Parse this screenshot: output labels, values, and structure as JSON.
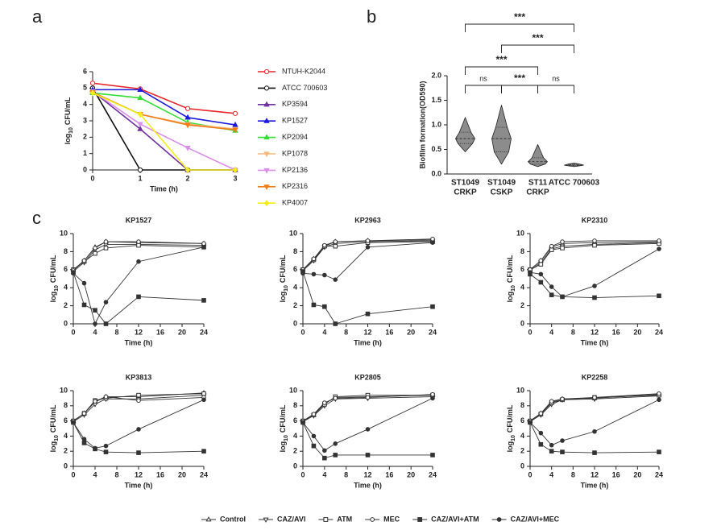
{
  "panel_labels": [
    "a",
    "b",
    "c"
  ],
  "chart_data": [
    {
      "type": "line",
      "xlabel": "Time (h)",
      "ylabel": {
        "main": "log",
        "sub": "10",
        "rest": "CFU/mL"
      },
      "x": [
        0,
        1,
        2,
        3
      ],
      "xlim": [
        0,
        3
      ],
      "xticks": [
        0,
        1,
        2,
        3
      ],
      "ylim": [
        0,
        6
      ],
      "yticks": [
        0,
        1,
        2,
        3,
        4,
        5,
        6
      ],
      "series": [
        {
          "name": "NTUH-K2044",
          "color": "#e8262b",
          "marker": "circle-open",
          "values": [
            5.3,
            4.95,
            3.75,
            3.45
          ]
        },
        {
          "name": "ATCC 700603",
          "color": "#111111",
          "marker": "circle-open",
          "values": [
            5.0,
            0,
            0,
            0
          ]
        },
        {
          "name": "KP3594",
          "color": "#7030a0",
          "marker": "triangle",
          "values": [
            4.8,
            2.5,
            0,
            0
          ]
        },
        {
          "name": "KP1527",
          "color": "#1a1adb",
          "marker": "triangle",
          "values": [
            4.9,
            4.9,
            3.2,
            2.75
          ]
        },
        {
          "name": "KP2094",
          "color": "#33dd33",
          "marker": "triangle",
          "values": [
            4.7,
            4.4,
            2.9,
            2.4
          ]
        },
        {
          "name": "KP1078",
          "color": "#f5b77a",
          "marker": "triangle-down",
          "values": [
            4.7,
            3.4,
            2.8,
            2.5
          ]
        },
        {
          "name": "KP2136",
          "color": "#d98ee8",
          "marker": "triangle-down",
          "values": [
            4.8,
            2.8,
            1.35,
            0
          ]
        },
        {
          "name": "KP2316",
          "color": "#f07d1a",
          "marker": "triangle-down",
          "values": [
            4.75,
            3.4,
            2.75,
            2.45
          ]
        },
        {
          "name": "KP4007",
          "color": "#f2ee1a",
          "marker": "diamond",
          "values": [
            4.7,
            3.4,
            0,
            0
          ]
        }
      ]
    },
    {
      "type": "violin",
      "ylabel": "Biofilm formation(OD590)",
      "color": "#8c8c8c",
      "categories": [
        [
          "ST1049",
          "CRKP"
        ],
        [
          "ST1049",
          "CSKP"
        ],
        [
          "ST11",
          "CRKP"
        ],
        [
          "ATCC 700603"
        ]
      ],
      "stats": [
        {
          "min": 0.45,
          "q1": 0.62,
          "median": 0.72,
          "q3": 0.85,
          "max": 1.15
        },
        {
          "min": 0.2,
          "q1": 0.45,
          "median": 0.72,
          "q3": 0.95,
          "max": 1.4
        },
        {
          "min": 0.15,
          "q1": 0.2,
          "median": 0.25,
          "q3": 0.33,
          "max": 0.6
        },
        {
          "min": 0.15,
          "q1": 0.17,
          "median": 0.18,
          "q3": 0.2,
          "max": 0.22
        }
      ],
      "ylim": [
        0,
        2
      ],
      "yticks": [
        {
          "value": 0,
          "label": "0.0"
        },
        {
          "value": 0.5,
          "label": "0.5"
        },
        {
          "value": 1,
          "label": "1.0"
        },
        {
          "value": 1.5,
          "label": "1.5"
        },
        {
          "value": 2,
          "label": "2.0"
        }
      ],
      "comparisons": [
        {
          "from": 0,
          "to": 1,
          "label": "ns"
        },
        {
          "from": 1,
          "to": 2,
          "label": "***"
        },
        {
          "from": 2,
          "to": 3,
          "label": "ns"
        },
        {
          "from": 0,
          "to": 2,
          "label": "***"
        },
        {
          "from": 1,
          "to": 3,
          "label": "***"
        },
        {
          "from": 0,
          "to": 3,
          "label": "***"
        }
      ]
    },
    {
      "type": "line",
      "title": "KP1527",
      "xlabel": "Time (h)",
      "ylabel": {
        "main": "log",
        "sub": "10",
        "rest": "CFU/mL"
      },
      "x": [
        0,
        2,
        4,
        6,
        12,
        24
      ],
      "xlim": [
        0,
        24
      ],
      "xticks": [
        0,
        4,
        8,
        12,
        16,
        20,
        24
      ],
      "ylim": [
        0,
        10
      ],
      "yticks": [
        0,
        2,
        4,
        6,
        8,
        10
      ],
      "series": [
        {
          "values": [
            6.0,
            7.0,
            8.5,
            9.1,
            9.0,
            8.9
          ]
        },
        {
          "values": [
            5.8,
            6.8,
            8.2,
            8.8,
            8.8,
            8.7
          ]
        },
        {
          "values": [
            6.0,
            6.9,
            7.8,
            8.4,
            8.7,
            8.5
          ]
        },
        {
          "values": [
            5.9,
            7.0,
            8.4,
            9.1,
            9.1,
            8.9
          ]
        },
        {
          "values": [
            5.7,
            2.1,
            1.5,
            0,
            3.0,
            2.6
          ]
        },
        {
          "values": [
            5.6,
            4.5,
            0,
            2.4,
            6.9,
            8.5
          ]
        }
      ]
    },
    {
      "type": "line",
      "title": "KP2963",
      "xlabel": "Time (h)",
      "ylabel": {
        "main": "log",
        "sub": "10",
        "rest": "CFU/mL"
      },
      "x": [
        0,
        2,
        4,
        6,
        12,
        24
      ],
      "xlim": [
        0,
        24
      ],
      "xticks": [
        0,
        4,
        8,
        12,
        16,
        20,
        24
      ],
      "ylim": [
        0,
        10
      ],
      "yticks": [
        0,
        2,
        4,
        6,
        8,
        10
      ],
      "series": [
        {
          "values": [
            6.0,
            7.2,
            8.6,
            9.1,
            9.2,
            9.3
          ]
        },
        {
          "values": [
            5.9,
            7.0,
            8.5,
            8.9,
            9.1,
            9.2
          ]
        },
        {
          "values": [
            6.0,
            7.1,
            8.6,
            8.6,
            9.0,
            9.1
          ]
        },
        {
          "values": [
            6.0,
            7.2,
            8.7,
            9.1,
            9.2,
            9.4
          ]
        },
        {
          "values": [
            5.8,
            2.1,
            1.9,
            0,
            1.1,
            1.9
          ]
        },
        {
          "values": [
            5.6,
            5.5,
            5.4,
            4.9,
            8.5,
            9.0
          ]
        }
      ]
    },
    {
      "type": "line",
      "title": "KP2310",
      "xlabel": "Time (h)",
      "ylabel": {
        "main": "log",
        "sub": "10",
        "rest": "CFU/mL"
      },
      "x": [
        0,
        2,
        4,
        6,
        12,
        24
      ],
      "xlim": [
        0,
        24
      ],
      "xticks": [
        0,
        4,
        8,
        12,
        16,
        20,
        24
      ],
      "ylim": [
        0,
        10
      ],
      "yticks": [
        0,
        2,
        4,
        6,
        8,
        10
      ],
      "series": [
        {
          "values": [
            6.0,
            7.0,
            8.5,
            8.9,
            9.0,
            9.1
          ]
        },
        {
          "values": [
            5.9,
            6.8,
            8.3,
            8.6,
            8.8,
            9.0
          ]
        },
        {
          "values": [
            6.0,
            6.6,
            8.2,
            8.4,
            8.7,
            8.9
          ]
        },
        {
          "values": [
            6.0,
            7.0,
            8.6,
            9.1,
            9.2,
            9.2
          ]
        },
        {
          "values": [
            5.5,
            4.6,
            3.2,
            3.0,
            2.9,
            3.1
          ]
        },
        {
          "values": [
            5.7,
            5.5,
            4.1,
            3.0,
            4.2,
            8.3
          ]
        }
      ]
    },
    {
      "type": "line",
      "title": "KP3813",
      "xlabel": "Time (h)",
      "ylabel": {
        "main": "log",
        "sub": "10",
        "rest": "CFU/mL"
      },
      "x": [
        0,
        2,
        4,
        6,
        12,
        24
      ],
      "xlim": [
        0,
        24
      ],
      "xticks": [
        0,
        4,
        8,
        12,
        16,
        20,
        24
      ],
      "ylim": [
        0,
        10
      ],
      "yticks": [
        0,
        2,
        4,
        6,
        8,
        10
      ],
      "series": [
        {
          "values": [
            6.0,
            7.0,
            8.5,
            9.2,
            9.2,
            9.7
          ]
        },
        {
          "values": [
            5.9,
            6.8,
            8.2,
            8.9,
            8.9,
            9.4
          ]
        },
        {
          "values": [
            6.0,
            7.0,
            8.7,
            9.0,
            9.4,
            9.6
          ]
        },
        {
          "values": [
            6.0,
            7.0,
            8.6,
            9.2,
            8.7,
            9.1
          ]
        },
        {
          "values": [
            5.8,
            3.1,
            2.3,
            1.9,
            1.8,
            2.0
          ]
        },
        {
          "values": [
            5.8,
            3.6,
            2.4,
            2.7,
            4.9,
            8.8
          ]
        }
      ]
    },
    {
      "type": "line",
      "title": "KP2805",
      "xlabel": "Time (h)",
      "ylabel": {
        "main": "log",
        "sub": "10",
        "rest": "CFU/mL"
      },
      "x": [
        0,
        2,
        4,
        6,
        12,
        24
      ],
      "xlim": [
        0,
        24
      ],
      "xticks": [
        0,
        4,
        8,
        12,
        16,
        20,
        24
      ],
      "ylim": [
        0,
        10
      ],
      "yticks": [
        0,
        2,
        4,
        6,
        8,
        10
      ],
      "series": [
        {
          "values": [
            6.0,
            6.8,
            8.3,
            9.1,
            9.2,
            9.4
          ]
        },
        {
          "values": [
            5.9,
            6.7,
            8.0,
            8.9,
            9.0,
            9.2
          ]
        },
        {
          "values": [
            6.0,
            6.8,
            8.2,
            9.2,
            9.4,
            9.4
          ]
        },
        {
          "values": [
            6.0,
            6.9,
            8.4,
            9.0,
            9.1,
            9.5
          ]
        },
        {
          "values": [
            5.8,
            2.7,
            1.1,
            1.5,
            1.5,
            1.5
          ]
        },
        {
          "values": [
            5.8,
            4.0,
            2.1,
            3.0,
            4.9,
            9.0
          ]
        }
      ]
    },
    {
      "type": "line",
      "title": "KP2258",
      "xlabel": "Time (h)",
      "ylabel": {
        "main": "log",
        "sub": "10",
        "rest": "CFU/mL"
      },
      "x": [
        0,
        2,
        4,
        6,
        12,
        24
      ],
      "xlim": [
        0,
        24
      ],
      "xticks": [
        0,
        4,
        8,
        12,
        16,
        20,
        24
      ],
      "ylim": [
        0,
        10
      ],
      "yticks": [
        0,
        2,
        4,
        6,
        8,
        10
      ],
      "series": [
        {
          "values": [
            6.0,
            7.0,
            8.5,
            8.9,
            9.0,
            9.5
          ]
        },
        {
          "values": [
            5.9,
            6.8,
            8.2,
            8.8,
            8.9,
            9.3
          ]
        },
        {
          "values": [
            6.0,
            6.9,
            8.4,
            8.8,
            9.1,
            9.4
          ]
        },
        {
          "values": [
            6.0,
            7.0,
            8.6,
            8.9,
            9.1,
            9.6
          ]
        },
        {
          "values": [
            5.8,
            2.9,
            2.0,
            1.9,
            1.8,
            1.9
          ]
        },
        {
          "values": [
            5.8,
            4.4,
            2.8,
            3.4,
            4.6,
            8.8
          ]
        }
      ]
    }
  ],
  "legend": {
    "color": "#333333",
    "entries": [
      {
        "name": "Control",
        "marker": "triangle-open"
      },
      {
        "name": "CAZ/AVI",
        "marker": "triangle-down-open"
      },
      {
        "name": "ATM",
        "marker": "square-open"
      },
      {
        "name": "MEC",
        "marker": "circle-open"
      },
      {
        "name": "CAZ/AVI+ATM",
        "marker": "square"
      },
      {
        "name": "CAZ/AVI+MEC",
        "marker": "circle"
      }
    ]
  }
}
